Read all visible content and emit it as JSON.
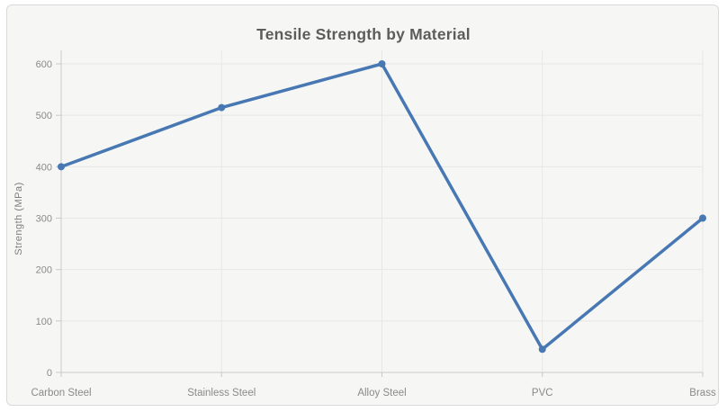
{
  "chart_data": {
    "type": "line",
    "title": "Tensile Strength by Material",
    "categories": [
      "Carbon Steel",
      "Stainless Steel",
      "Alloy Steel",
      "PVC",
      "Brass"
    ],
    "values": [
      400,
      515,
      600,
      45,
      300
    ],
    "xlabel": "",
    "ylabel": "Strength (MPa)",
    "ylim": [
      0,
      600
    ],
    "yticks": [
      0,
      100,
      200,
      300,
      400,
      500,
      600
    ],
    "grid": true,
    "legend": "none",
    "colors": {
      "line": "#4878b4",
      "marker": "#4878b4",
      "gridline": "#e7e7e4",
      "axis_line": "#c9c9c9",
      "title_text": "#5c5c5c",
      "tick_text": "#8a8a8a",
      "axis_title_text": "#7d7d7d",
      "card_background": "#f6f6f4",
      "card_border": "#d9d9d9",
      "page_background": "#ffffff"
    }
  }
}
